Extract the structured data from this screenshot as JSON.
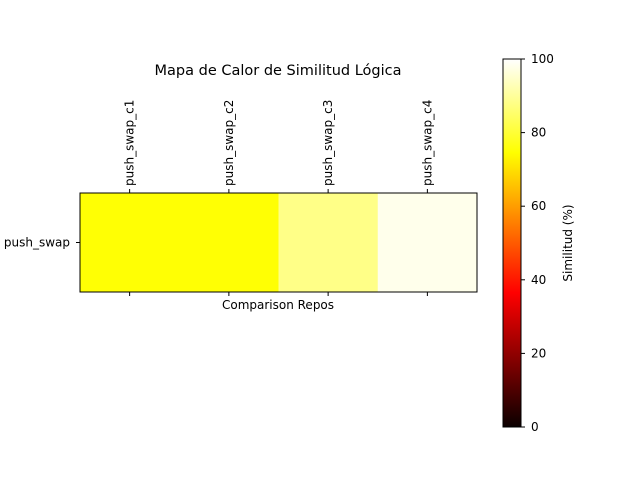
{
  "chart_data": {
    "type": "heatmap",
    "title": "Mapa de Calor de Similitud Lógica",
    "xlabel": "Comparison Repos",
    "ylabel": "",
    "x_categories": [
      "push_swap_c1",
      "push_swap_c2",
      "push_swap_c3",
      "push_swap_c4"
    ],
    "y_categories": [
      "push_swap"
    ],
    "values": [
      [
        75,
        75,
        88,
        98
      ]
    ],
    "colormap": "hot",
    "colorbar": {
      "label": "Similitud (%)",
      "range": [
        0,
        100
      ],
      "ticks": [
        "0",
        "20",
        "40",
        "60",
        "80",
        "100"
      ]
    },
    "grid": false,
    "x_tick_position": "top"
  }
}
